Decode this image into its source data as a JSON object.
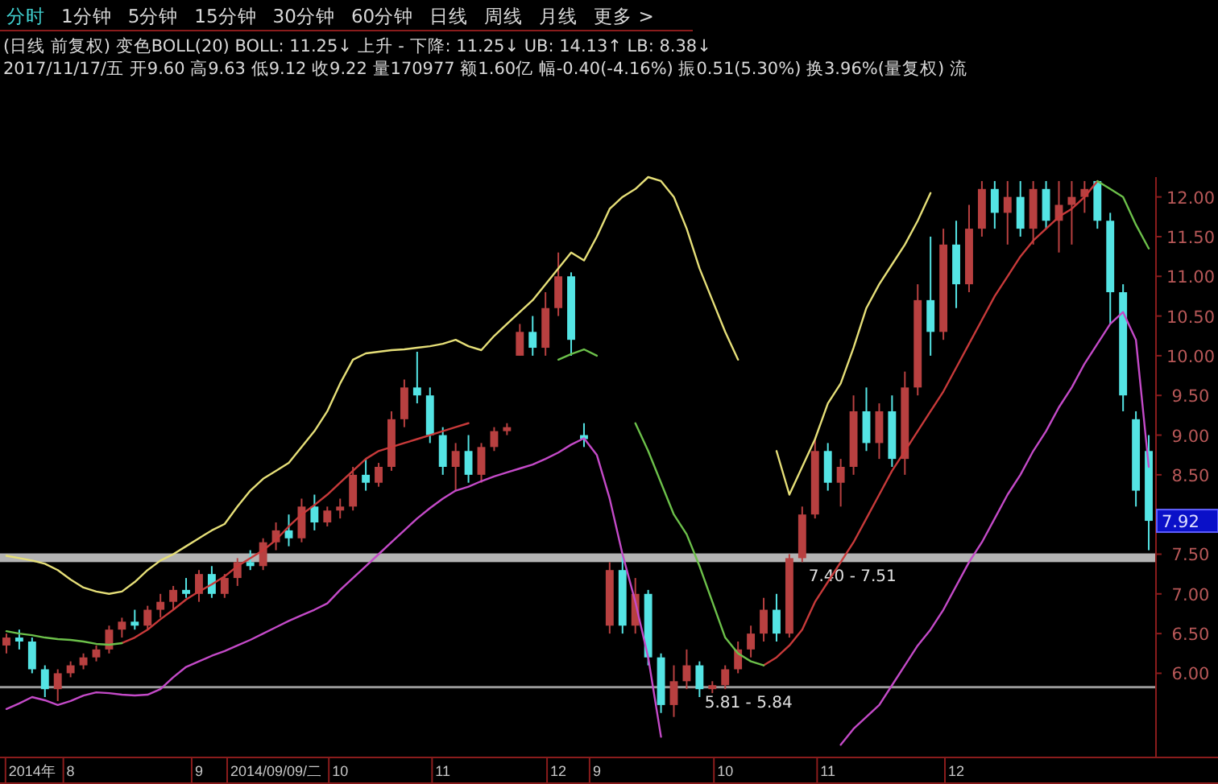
{
  "chart_data": {
    "type": "candlestick",
    "title": "(日线 前复权) 变色BOLL(20) BOLL: 11.25↓ 上升 - 下降: 11.25↓ UB: 14.13↑ LB: 8.38↓",
    "subtitle": "2017/11/17/五 开9.60 高9.63 低9.12 收9.22 量170977 额1.60亿 幅-0.40(-4.16%) 振0.51(5.30%) 换3.96%(量复权) 流",
    "annotations": [
      "分时",
      "1分钟",
      "5分钟",
      "15分钟",
      "30分钟",
      "60分钟",
      "日线",
      "周线",
      "月线",
      "更多 >",
      "7.92"
    ],
    "categories": [
      null,
      null,
      "2014年",
      null,
      null,
      "8",
      null,
      null,
      null,
      null,
      null,
      null,
      null,
      null,
      null,
      "9",
      null,
      null,
      null,
      null,
      null,
      "2014/09/09/二",
      null,
      null,
      null,
      null,
      "10",
      null,
      null,
      null,
      null,
      null,
      null,
      null,
      "11",
      null,
      null,
      null,
      null,
      null,
      null,
      null,
      null,
      "12",
      null,
      null,
      "9",
      null,
      null,
      null,
      null,
      null,
      null,
      null,
      null,
      null,
      "10",
      null,
      null,
      null,
      null,
      null,
      null,
      null,
      "11",
      null,
      null,
      null,
      null,
      null,
      null,
      null,
      null,
      null,
      "12",
      null,
      null,
      null,
      null,
      null,
      null,
      null,
      null,
      null,
      null,
      null,
      null,
      null,
      null,
      null
    ],
    "ohlc": [
      [
        6.35,
        6.5,
        6.25,
        6.45
      ],
      [
        6.45,
        6.55,
        6.3,
        6.4
      ],
      [
        6.4,
        6.45,
        6.0,
        6.05
      ],
      [
        6.05,
        6.1,
        5.7,
        5.8
      ],
      [
        5.8,
        6.05,
        5.65,
        6.0
      ],
      [
        6.0,
        6.15,
        5.95,
        6.1
      ],
      [
        6.1,
        6.25,
        6.05,
        6.2
      ],
      [
        6.2,
        6.35,
        6.15,
        6.3
      ],
      [
        6.3,
        6.6,
        6.25,
        6.55
      ],
      [
        6.55,
        6.7,
        6.45,
        6.65
      ],
      [
        6.65,
        6.8,
        6.55,
        6.6
      ],
      [
        6.6,
        6.85,
        6.55,
        6.8
      ],
      [
        6.8,
        7.0,
        6.7,
        6.9
      ],
      [
        6.9,
        7.1,
        6.8,
        7.05
      ],
      [
        7.05,
        7.2,
        6.95,
        7.0
      ],
      [
        7.0,
        7.3,
        6.9,
        7.25
      ],
      [
        7.25,
        7.35,
        6.95,
        7.0
      ],
      [
        7.0,
        7.25,
        6.95,
        7.2
      ],
      [
        7.2,
        7.45,
        7.1,
        7.4
      ],
      [
        7.4,
        7.55,
        7.3,
        7.35
      ],
      [
        7.35,
        7.7,
        7.3,
        7.65
      ],
      [
        7.65,
        7.9,
        7.55,
        7.8
      ],
      [
        7.8,
        8.0,
        7.6,
        7.7
      ],
      [
        7.7,
        8.2,
        7.65,
        8.1
      ],
      [
        8.1,
        8.25,
        7.8,
        7.9
      ],
      [
        7.9,
        8.1,
        7.85,
        8.05
      ],
      [
        8.05,
        8.2,
        7.95,
        8.1
      ],
      [
        8.1,
        8.6,
        8.05,
        8.5
      ],
      [
        8.5,
        8.7,
        8.3,
        8.4
      ],
      [
        8.4,
        8.65,
        8.35,
        8.6
      ],
      [
        8.6,
        9.3,
        8.55,
        9.2
      ],
      [
        9.2,
        9.7,
        9.1,
        9.6
      ],
      [
        9.6,
        10.05,
        9.4,
        9.5
      ],
      [
        9.5,
        9.6,
        8.9,
        9.0
      ],
      [
        9.0,
        9.1,
        8.5,
        8.6
      ],
      [
        8.6,
        8.9,
        8.3,
        8.8
      ],
      [
        8.8,
        9.0,
        8.4,
        8.5
      ],
      [
        8.5,
        8.9,
        8.4,
        8.85
      ],
      [
        8.85,
        9.1,
        8.8,
        9.05
      ],
      [
        9.05,
        9.15,
        9.0,
        9.1
      ],
      [
        10.0,
        10.4,
        10.0,
        10.3
      ],
      [
        10.3,
        10.5,
        10.0,
        10.1
      ],
      [
        10.1,
        10.8,
        10.0,
        10.6
      ],
      [
        10.6,
        11.3,
        10.5,
        11.0
      ],
      [
        11.0,
        11.05,
        10.0,
        10.2
      ],
      [
        9.0,
        9.15,
        8.85,
        8.95
      ],
      null,
      [
        6.6,
        7.4,
        6.5,
        7.3
      ],
      [
        7.3,
        7.5,
        6.5,
        6.6
      ],
      [
        6.6,
        7.2,
        6.5,
        7.0
      ],
      [
        7.0,
        7.05,
        6.1,
        6.2
      ],
      [
        6.2,
        6.25,
        5.5,
        5.6
      ],
      [
        5.6,
        6.1,
        5.45,
        5.9
      ],
      [
        5.9,
        6.3,
        5.8,
        6.1
      ],
      [
        6.1,
        6.15,
        5.7,
        5.8
      ],
      [
        5.8,
        5.9,
        5.75,
        5.85
      ],
      [
        5.85,
        6.1,
        5.8,
        6.05
      ],
      [
        6.05,
        6.4,
        6.0,
        6.3
      ],
      [
        6.3,
        6.6,
        6.2,
        6.5
      ],
      [
        6.5,
        6.95,
        6.4,
        6.8
      ],
      [
        6.8,
        7.0,
        6.4,
        6.5
      ],
      [
        6.5,
        7.5,
        6.45,
        7.45
      ],
      [
        7.45,
        8.1,
        7.4,
        8.0
      ],
      [
        8.0,
        8.95,
        7.95,
        8.8
      ],
      [
        8.8,
        8.9,
        8.3,
        8.4
      ],
      [
        8.4,
        8.7,
        8.1,
        8.6
      ],
      [
        8.6,
        9.5,
        8.5,
        9.3
      ],
      [
        9.3,
        9.6,
        8.8,
        8.9
      ],
      [
        8.9,
        9.4,
        8.7,
        9.3
      ],
      [
        9.3,
        9.5,
        8.6,
        8.7
      ],
      [
        8.7,
        9.8,
        8.5,
        9.6
      ],
      [
        9.6,
        10.9,
        9.5,
        10.7
      ],
      [
        10.7,
        11.5,
        10.0,
        10.3
      ],
      [
        10.3,
        11.6,
        10.2,
        11.4
      ],
      [
        11.4,
        11.7,
        10.6,
        10.9
      ],
      [
        10.9,
        11.9,
        10.8,
        11.6
      ],
      [
        11.6,
        12.2,
        11.5,
        12.1
      ],
      [
        12.1,
        12.2,
        11.6,
        11.8
      ],
      [
        11.8,
        12.2,
        11.4,
        12.0
      ],
      [
        12.0,
        12.2,
        11.5,
        11.6
      ],
      [
        11.6,
        12.2,
        11.4,
        12.1
      ],
      [
        12.1,
        12.2,
        11.6,
        11.7
      ],
      [
        11.7,
        12.2,
        11.3,
        11.9
      ],
      [
        11.9,
        12.2,
        11.4,
        12.0
      ],
      [
        12.0,
        12.2,
        11.8,
        12.1
      ],
      [
        12.2,
        12.2,
        11.6,
        11.7
      ],
      [
        11.7,
        11.8,
        10.4,
        10.8
      ],
      [
        10.8,
        10.9,
        9.3,
        9.5
      ],
      [
        9.2,
        9.3,
        8.1,
        8.3
      ],
      [
        8.8,
        9.0,
        7.55,
        7.92
      ]
    ],
    "series": [
      {
        "type": "line",
        "color": "#e6df78",
        "values": [
          7.48,
          7.45,
          7.42,
          7.38,
          7.3,
          7.18,
          7.08,
          7.03,
          7.0,
          7.03,
          7.15,
          7.3,
          7.42,
          7.5,
          7.6,
          7.7,
          7.8,
          7.88,
          8.1,
          8.3,
          8.45,
          8.55,
          8.65,
          8.85,
          9.05,
          9.3,
          9.65,
          9.95,
          10.03,
          10.05,
          10.07,
          10.08,
          10.1,
          10.12,
          10.15,
          10.2,
          10.12,
          10.07,
          10.25,
          10.4,
          10.55,
          10.7,
          10.9,
          11.1,
          11.3,
          11.2,
          11.5,
          11.85,
          12.0,
          12.1,
          12.25,
          12.2,
          12.0,
          11.6,
          11.1,
          10.7,
          10.3,
          9.95,
          null,
          null,
          8.8,
          8.25,
          8.6,
          8.95,
          9.4,
          9.65,
          10.1,
          10.6,
          10.9,
          11.15,
          11.4,
          11.7,
          12.05,
          null,
          null,
          null,
          null,
          null,
          null,
          null,
          null,
          null,
          null,
          null,
          null,
          null,
          null,
          null,
          null,
          null
        ]
      },
      {
        "type": "line",
        "color": "#c83a3a",
        "values": [
          null,
          null,
          null,
          null,
          null,
          null,
          null,
          null,
          null,
          6.38,
          6.45,
          6.55,
          6.68,
          6.8,
          6.93,
          7.03,
          7.12,
          7.22,
          7.35,
          7.45,
          7.55,
          7.68,
          7.85,
          8.0,
          8.12,
          8.25,
          8.4,
          8.55,
          8.7,
          8.8,
          8.85,
          8.9,
          8.95,
          9.0,
          9.05,
          9.1,
          9.15,
          null,
          null,
          null,
          null,
          null,
          null,
          null,
          null,
          null,
          null,
          null,
          null,
          null,
          null,
          null,
          null,
          null,
          null,
          null,
          null,
          null,
          null,
          6.1,
          6.2,
          6.35,
          6.55,
          6.9,
          7.15,
          7.4,
          7.65,
          7.95,
          8.25,
          8.55,
          8.8,
          9.05,
          9.3,
          9.55,
          9.85,
          10.15,
          10.45,
          10.75,
          11.0,
          11.25,
          11.45,
          11.6,
          11.75,
          11.85,
          12.0,
          12.2,
          null,
          null,
          null,
          null
        ]
      },
      {
        "type": "line",
        "color": "#6cc04a",
        "values": [
          6.53,
          6.5,
          6.48,
          6.45,
          6.43,
          6.42,
          6.4,
          6.37,
          6.36,
          6.38,
          null,
          null,
          null,
          null,
          null,
          null,
          null,
          null,
          null,
          null,
          null,
          null,
          null,
          null,
          null,
          null,
          null,
          null,
          null,
          null,
          null,
          null,
          null,
          null,
          null,
          null,
          null,
          null,
          null,
          null,
          null,
          null,
          null,
          9.95,
          10.02,
          10.08,
          10.0,
          null,
          null,
          9.15,
          8.8,
          8.4,
          8.0,
          7.75,
          7.35,
          6.9,
          6.45,
          6.25,
          6.15,
          6.1,
          null,
          null,
          null,
          null,
          null,
          null,
          null,
          null,
          null,
          null,
          null,
          null,
          null,
          null,
          null,
          null,
          null,
          null,
          null,
          null,
          null,
          null,
          null,
          null,
          null,
          12.2,
          12.1,
          12.0,
          11.65,
          11.35
        ]
      },
      {
        "type": "line",
        "color": "#c44ac8",
        "values": [
          5.55,
          5.62,
          5.7,
          5.66,
          5.6,
          5.65,
          5.72,
          5.76,
          5.75,
          5.73,
          5.72,
          5.73,
          5.8,
          5.95,
          6.08,
          6.15,
          6.22,
          6.28,
          6.35,
          6.42,
          6.5,
          6.58,
          6.66,
          6.73,
          6.8,
          6.88,
          7.05,
          7.2,
          7.35,
          7.5,
          7.65,
          7.8,
          7.95,
          8.08,
          8.2,
          8.3,
          8.35,
          8.42,
          8.48,
          8.53,
          8.58,
          8.63,
          8.7,
          8.78,
          8.88,
          8.96,
          8.75,
          8.2,
          7.5,
          6.9,
          6.2,
          5.2,
          null,
          null,
          null,
          null,
          null,
          null,
          null,
          null,
          null,
          null,
          null,
          null,
          null,
          5.1,
          5.3,
          5.45,
          5.6,
          5.85,
          6.1,
          6.35,
          6.55,
          6.8,
          7.1,
          7.4,
          7.65,
          7.95,
          8.25,
          8.5,
          8.8,
          9.05,
          9.35,
          9.6,
          9.9,
          10.15,
          10.4,
          10.55,
          10.2,
          8.6
        ]
      }
    ],
    "ylim": [
      4.95,
      12.25
    ],
    "yticks": [
      {
        "value": 6,
        "label": "6.00"
      },
      {
        "value": 6.5,
        "label": "6.50"
      },
      {
        "value": 7,
        "label": "7.00"
      },
      {
        "value": 7.5,
        "label": "7.50"
      },
      {
        "value": 8,
        "label": null
      },
      {
        "value": 8.5,
        "label": "8.50"
      },
      {
        "value": 9,
        "label": "9.00"
      },
      {
        "value": 9.5,
        "label": "9.50"
      },
      {
        "value": 10,
        "label": "10.00"
      },
      {
        "value": 10.5,
        "label": "10.50"
      },
      {
        "value": 11,
        "label": "11.00"
      },
      {
        "value": 11.5,
        "label": "11.50"
      },
      {
        "value": 12,
        "label": "12.00"
      }
    ],
    "bands": [
      {
        "axis": "y",
        "from": 7.4,
        "to": 7.51,
        "label": "7.40 - 7.51",
        "color": "#b4b4b4"
      },
      {
        "axis": "y",
        "from": 5.81,
        "to": 5.84,
        "label": "5.81 - 5.84",
        "color": "#9a9a9a"
      }
    ]
  }
}
